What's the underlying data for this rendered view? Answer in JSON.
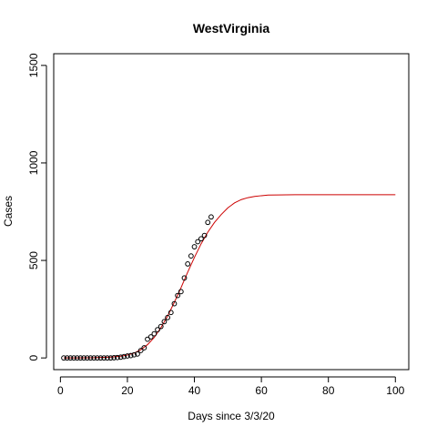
{
  "chart_data": {
    "type": "scatter",
    "title": "WestVirginia",
    "xlabel": "Days since 3/3/20",
    "ylabel": "Cases",
    "xlim": [
      -2,
      104
    ],
    "ylim": [
      -60,
      1560
    ],
    "xticks": [
      0,
      20,
      40,
      60,
      80,
      100
    ],
    "yticks": [
      0,
      500,
      1000,
      1500
    ],
    "grid": false,
    "series": [
      {
        "kind": "points",
        "marker": "open-circle",
        "color": "#000000",
        "x": [
          1,
          2,
          3,
          4,
          5,
          6,
          7,
          8,
          9,
          10,
          11,
          12,
          13,
          14,
          15,
          16,
          17,
          18,
          19,
          20,
          21,
          22,
          23,
          24,
          25,
          26,
          27,
          28,
          29,
          30,
          31,
          32,
          33,
          34,
          35,
          36,
          37,
          38,
          39,
          40,
          41,
          42,
          43,
          44,
          45
        ],
        "y": [
          0,
          0,
          0,
          0,
          0,
          0,
          0,
          0,
          0,
          0,
          0,
          0,
          0,
          0,
          0,
          1,
          2,
          4,
          7,
          10,
          12,
          16,
          20,
          38,
          52,
          96,
          108,
          124,
          145,
          161,
          186,
          207,
          233,
          278,
          320,
          340,
          410,
          482,
          523,
          570,
          596,
          611,
          628,
          695,
          723
        ]
      },
      {
        "kind": "fit-line",
        "color": "#cc0000",
        "x": [
          1,
          5,
          10,
          15,
          18,
          20,
          22,
          24,
          26,
          28,
          30,
          32,
          34,
          36,
          38,
          40,
          42,
          44,
          46,
          48,
          50,
          52,
          54,
          56,
          58,
          60,
          62,
          65,
          70,
          80,
          90,
          100
        ],
        "y": [
          0,
          0,
          1,
          4,
          9,
          15,
          25,
          42,
          68,
          105,
          155,
          215,
          285,
          360,
          440,
          515,
          585,
          645,
          695,
          735,
          770,
          795,
          812,
          822,
          828,
          832,
          835,
          836,
          837,
          837,
          837,
          837
        ]
      }
    ]
  }
}
